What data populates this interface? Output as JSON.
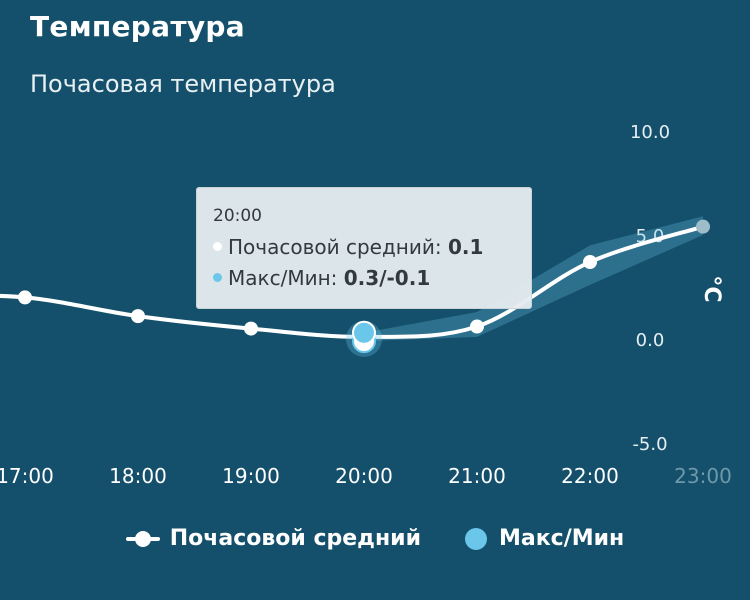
{
  "header": {
    "title": "Температура"
  },
  "chart_data": {
    "type": "line",
    "subtitle": "Почасовая температура",
    "categories": [
      "17:00",
      "18:00",
      "19:00",
      "20:00",
      "21:00",
      "22:00",
      "23:00"
    ],
    "x_labels": [
      "17:00",
      "18:00",
      "19:00",
      "20:00",
      "21:00",
      "22:00",
      "23:00"
    ],
    "x_start": "16:00",
    "x_start_value": 2.1,
    "ylabel": "°C",
    "ylim": [
      -5,
      10
    ],
    "yticks": [
      "10.0",
      "5.0",
      "0.0",
      "-5.0"
    ],
    "yticks_values": [
      10,
      5,
      0,
      -5
    ],
    "grid": false,
    "legend_position": "bottom-center",
    "series": [
      {
        "name": "Почасовой средний",
        "values": [
          2.0,
          1.1,
          0.5,
          0.1,
          0.6,
          3.7,
          5.4
        ],
        "color": "#ffffff"
      },
      {
        "name": "Макс/Мин",
        "max": [
          null,
          null,
          null,
          0.3,
          1.3,
          4.5,
          5.9
        ],
        "min": [
          null,
          null,
          null,
          -0.1,
          0.1,
          2.6,
          5.0
        ],
        "color": "#6ac7ea"
      }
    ],
    "tooltip": {
      "time": "20:00",
      "rows": [
        {
          "label": "Почасовой средний:",
          "value": "0.1",
          "color": "#ffffff"
        },
        {
          "label": "Макс/Мин:",
          "value": "0.3/-0.1",
          "color": "#6ac7ea"
        }
      ]
    }
  },
  "legend": [
    {
      "label": "Почасовой средний"
    },
    {
      "label": "Макс/Мин"
    }
  ]
}
